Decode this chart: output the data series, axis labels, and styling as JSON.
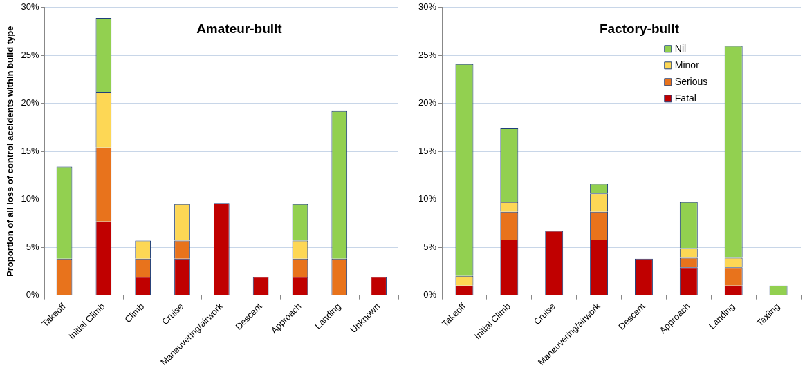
{
  "chart_data": [
    {
      "type": "bar",
      "title": "Amateur-built",
      "ylabel": "Proportion of all loss of control accidents within build type",
      "stacked": true,
      "grid": "y",
      "legend": false,
      "categories": [
        "Takeoff",
        "Initial Climb",
        "Climb",
        "Cruise",
        "Maneuvering/airwork",
        "Descent",
        "Approach",
        "Landing",
        "Unknown"
      ],
      "ylim": [
        0,
        30
      ],
      "yticks": [
        {
          "value": 0,
          "label": "0%"
        },
        {
          "value": 5,
          "label": "5%"
        },
        {
          "value": 10,
          "label": "10%"
        },
        {
          "value": 15,
          "label": "15%"
        },
        {
          "value": 20,
          "label": "20%"
        },
        {
          "value": 25,
          "label": "25%"
        },
        {
          "value": 30,
          "label": "30%"
        }
      ],
      "series": [
        {
          "color": "#c00000",
          "values": [
            0,
            7.7,
            1.9,
            3.8,
            9.6,
            1.9,
            1.9,
            0,
            1.9
          ]
        },
        {
          "color": "#e8731c",
          "values": [
            3.8,
            7.7,
            1.9,
            1.9,
            0,
            0,
            1.9,
            3.8,
            0
          ]
        },
        {
          "color": "#fdd755",
          "values": [
            0,
            5.8,
            1.9,
            3.8,
            0,
            0,
            1.9,
            0,
            0
          ]
        },
        {
          "color": "#92d050",
          "values": [
            9.6,
            7.7,
            0,
            0,
            0,
            0,
            3.8,
            15.4,
            0
          ]
        }
      ]
    },
    {
      "type": "bar",
      "title": "Factory-built",
      "stacked": true,
      "grid": "y",
      "legend": "top right",
      "categories": [
        "Takeoff",
        "Initial Climb",
        "Cruise",
        "Maneuvering/airwork",
        "Descent",
        "Approach",
        "Landing",
        "Taxiing"
      ],
      "ylim": [
        0,
        30
      ],
      "yticks": [
        {
          "value": 0,
          "label": "0%"
        },
        {
          "value": 5,
          "label": "5%"
        },
        {
          "value": 10,
          "label": "10%"
        },
        {
          "value": 15,
          "label": "15%"
        },
        {
          "value": 20,
          "label": "20%"
        },
        {
          "value": 25,
          "label": "25%"
        },
        {
          "value": 30,
          "label": "30%"
        }
      ],
      "series": [
        {
          "name": "Fatal",
          "color": "#c00000",
          "values": [
            1.0,
            5.8,
            6.7,
            5.8,
            3.8,
            2.9,
            1.0,
            0
          ]
        },
        {
          "name": "Serious",
          "color": "#e8731c",
          "values": [
            0,
            2.9,
            0,
            2.9,
            0,
            1.0,
            1.9,
            0
          ]
        },
        {
          "name": "Minor",
          "color": "#fdd755",
          "values": [
            1.0,
            1.0,
            0,
            1.9,
            0,
            1.0,
            1.0,
            0
          ]
        },
        {
          "name": "Nil",
          "color": "#92d050",
          "values": [
            22.1,
            7.7,
            0,
            1.0,
            0,
            4.8,
            22.1,
            1.0
          ]
        }
      ]
    }
  ]
}
